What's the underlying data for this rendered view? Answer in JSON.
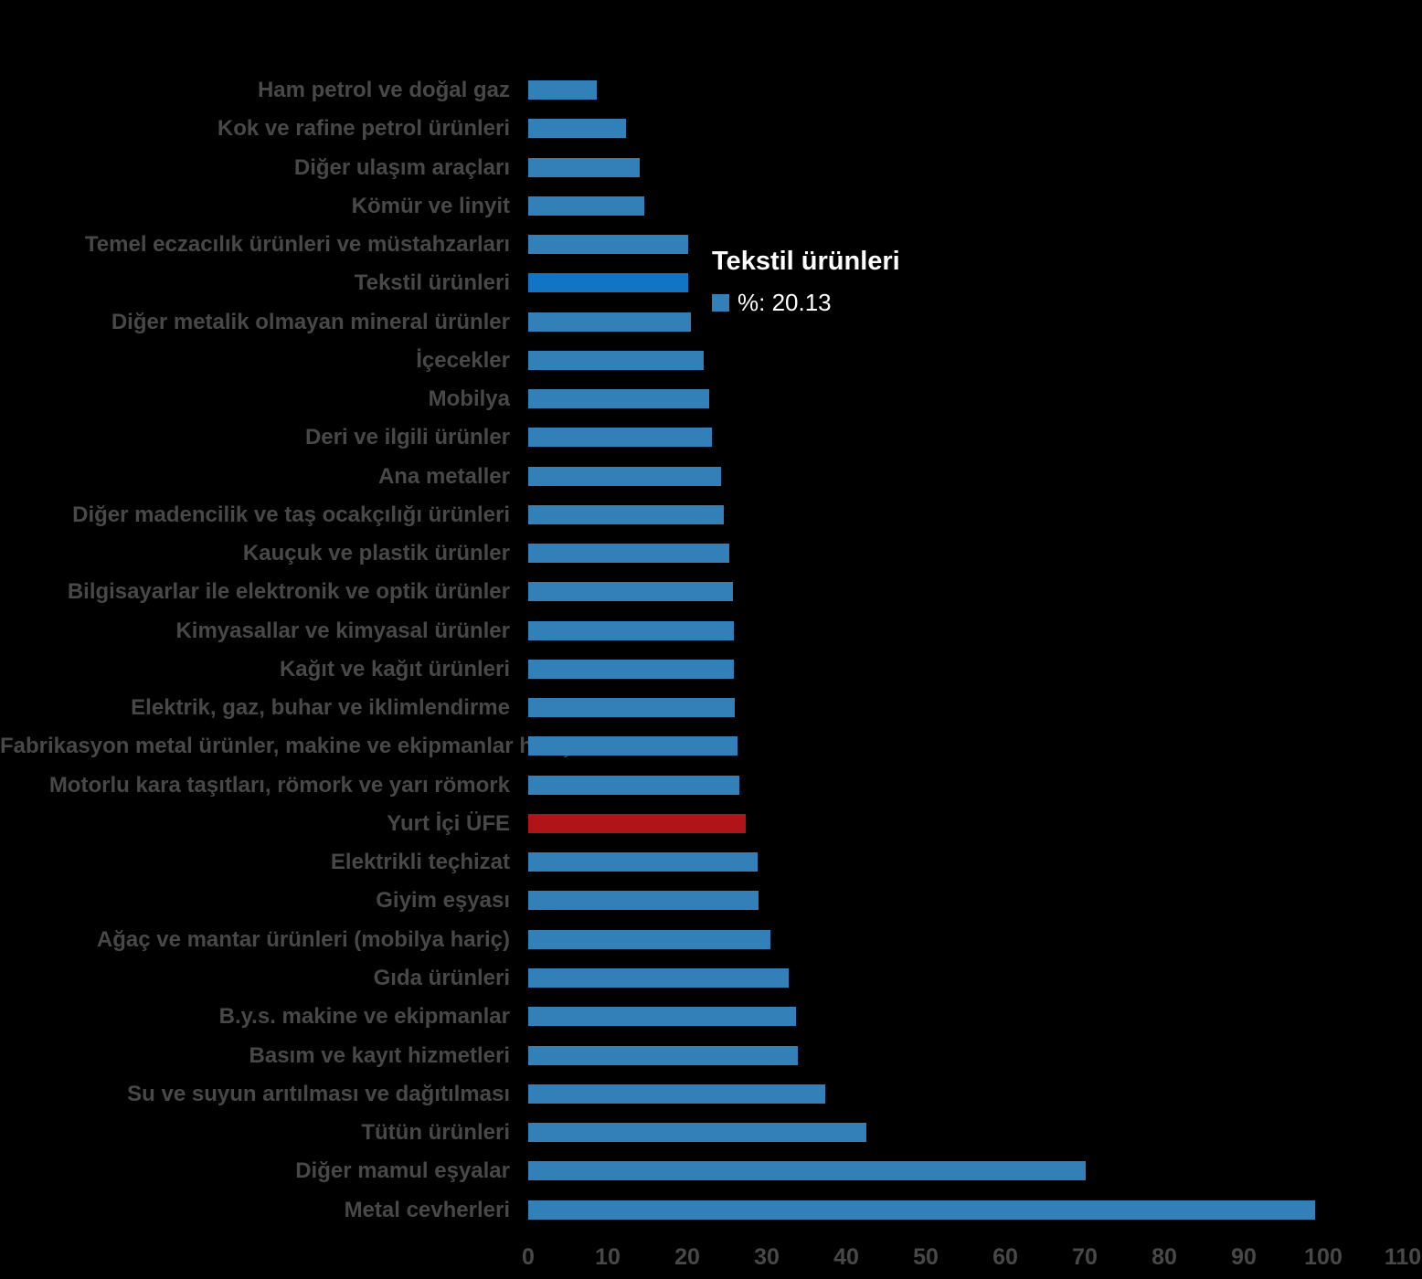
{
  "background_color": "#000000",
  "text_color": "#484848",
  "chart_data": {
    "type": "bar",
    "orientation": "horizontal",
    "title": "",
    "xlabel": "",
    "ylabel": "",
    "xlim": [
      0,
      110
    ],
    "x_ticks": [
      0,
      10,
      20,
      30,
      40,
      50,
      60,
      70,
      80,
      90,
      100,
      110
    ],
    "grid": false,
    "legend": "none",
    "categories": [
      "Ham petrol ve doğal gaz",
      "Kok ve rafine petrol ürünleri",
      "Diğer ulaşım araçları",
      "Kömür ve linyit",
      "Temel eczacılık ürünleri ve müstahzarları",
      "Tekstil ürünleri",
      "Diğer metalik olmayan mineral ürünler",
      "İçecekler",
      "Mobilya",
      "Deri ve ilgili ürünler",
      "Ana metaller",
      "Diğer madencilik ve taş ocakçılığı ürünleri",
      "Kauçuk ve plastik ürünler",
      "Bilgisayarlar ile elektronik ve optik ürünler",
      "Kimyasallar ve kimyasal ürünler",
      "Kağıt ve kağıt ürünleri",
      "Elektrik, gaz, buhar ve iklimlendirme",
      "Fabrikasyon metal ürünler, makine ve ekipmanlar hariç",
      "Motorlu kara taşıtları, römork ve yarı römork",
      "Yurt İçi ÜFE",
      "Elektrikli teçhizat",
      "Giyim eşyası",
      "Ağaç ve mantar ürünleri (mobilya hariç)",
      "Gıda ürünleri",
      "B.y.s. makine ve ekipmanlar",
      "Basım ve kayıt hizmetleri",
      "Su ve suyun arıtılması ve dağıtılması",
      "Tütün ürünleri",
      "Diğer mamul eşyalar",
      "Metal cevherleri"
    ],
    "values": [
      8.6,
      12.3,
      14.0,
      14.6,
      20.1,
      20.13,
      20.4,
      22.1,
      22.8,
      23.1,
      24.2,
      24.6,
      25.3,
      25.7,
      25.8,
      25.9,
      26.0,
      26.3,
      26.6,
      27.3,
      28.9,
      29.0,
      30.5,
      32.8,
      33.7,
      33.9,
      37.3,
      42.5,
      70.1,
      99.0
    ],
    "colors": {
      "default": "#3380B8",
      "highlight": "#1174C4",
      "ufe_red": "#B01419"
    },
    "highlight_index": 5,
    "red_index": 19
  },
  "tooltip": {
    "title": "Tekstil ürünleri",
    "value_label": "%: 20.13",
    "swatch_color": "#3380B8"
  }
}
